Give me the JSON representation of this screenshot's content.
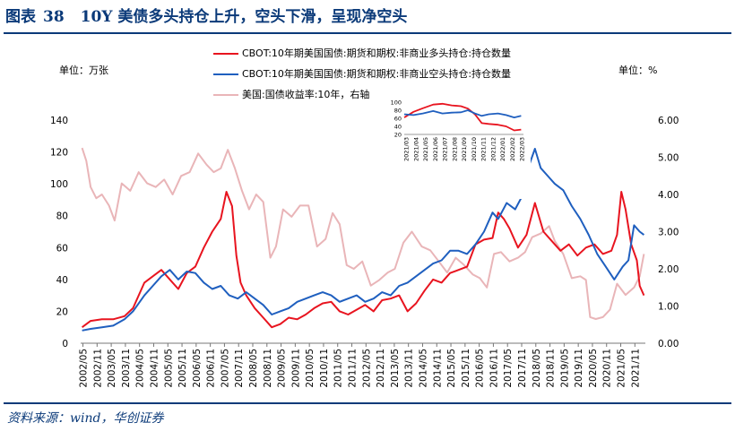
{
  "header": {
    "figure_label": "图表",
    "figure_number": "38",
    "title": "10Y 美债多头持仓上升，空头下滑，呈现净空头"
  },
  "source": "资料来源：wind，华创证券",
  "units": {
    "left": "单位：万张",
    "right": "单位：%"
  },
  "colors": {
    "long": "#e8141f",
    "short": "#1f5fbf",
    "yield": "#e9b5b8",
    "brand": "#0b3a79"
  },
  "chart_data": [
    {
      "type": "line",
      "title": "",
      "legend": [
        "CBOT:10年期美国国债:期货和期权:非商业多头持仓:持仓数量",
        "CBOT:10年期美国国债:期货和期权:非商业空头持仓:持仓数量",
        "美国:国债收益率:10年，右轴"
      ],
      "legend_position": "top-center",
      "x_ticks": [
        "2002/05",
        "2002/11",
        "2003/05",
        "2003/11",
        "2004/05",
        "2004/11",
        "2005/05",
        "2005/11",
        "2006/05",
        "2006/11",
        "2007/05",
        "2007/11",
        "2008/05",
        "2008/11",
        "2009/05",
        "2009/11",
        "2010/05",
        "2010/11",
        "2011/05",
        "2011/11",
        "2012/05",
        "2012/11",
        "2013/05",
        "2013/11",
        "2014/05",
        "2014/11",
        "2015/05",
        "2015/11",
        "2016/05",
        "2016/11",
        "2017/05",
        "2017/11",
        "2018/05",
        "2018/11",
        "2019/05",
        "2019/11",
        "2020/05",
        "2020/11",
        "2021/05",
        "2021/11"
      ],
      "x_range": [
        2002.25,
        2022.2
      ],
      "ylim_left": [
        0,
        140
      ],
      "yticks_left": [
        "0",
        "20",
        "40",
        "60",
        "80",
        "100",
        "120",
        "140"
      ],
      "ylim_right": [
        0,
        6
      ],
      "yticks_right": [
        "0.00",
        "1.00",
        "2.00",
        "3.00",
        "4.00",
        "5.00",
        "6.00"
      ],
      "series": [
        {
          "name": "非商业多头持仓",
          "axis": "left",
          "color": "#e8141f",
          "x": [
            2002.3,
            2002.6,
            2003.0,
            2003.4,
            2003.8,
            2004.1,
            2004.5,
            2004.8,
            2005.1,
            2005.4,
            2005.7,
            2006.0,
            2006.3,
            2006.6,
            2006.9,
            2007.2,
            2007.4,
            2007.6,
            2007.75,
            2007.9,
            2008.1,
            2008.4,
            2008.7,
            2009.0,
            2009.3,
            2009.6,
            2009.9,
            2010.2,
            2010.5,
            2010.8,
            2011.1,
            2011.4,
            2011.7,
            2012.0,
            2012.3,
            2012.6,
            2012.9,
            2013.2,
            2013.5,
            2013.8,
            2014.1,
            2014.4,
            2014.7,
            2015.0,
            2015.3,
            2015.6,
            2015.9,
            2016.2,
            2016.5,
            2016.8,
            2017.0,
            2017.2,
            2017.4,
            2017.7,
            2018.0,
            2018.3,
            2018.6,
            2018.9,
            2019.2,
            2019.5,
            2019.8,
            2020.1,
            2020.4,
            2020.7,
            2021.0,
            2021.2,
            2021.35,
            2021.5,
            2021.7,
            2021.9,
            2022.0,
            2022.15
          ],
          "values": [
            10,
            14,
            15,
            15,
            17,
            22,
            38,
            42,
            46,
            40,
            34,
            44,
            48,
            60,
            70,
            78,
            95,
            86,
            55,
            38,
            30,
            22,
            16,
            10,
            12,
            16,
            15,
            18,
            22,
            25,
            26,
            20,
            18,
            21,
            24,
            20,
            27,
            28,
            30,
            20,
            25,
            33,
            40,
            38,
            44,
            46,
            48,
            62,
            65,
            66,
            82,
            78,
            72,
            60,
            68,
            88,
            70,
            64,
            58,
            62,
            55,
            60,
            62,
            56,
            58,
            68,
            95,
            84,
            62,
            52,
            36,
            30
          ]
        },
        {
          "name": "非商业空头持仓",
          "axis": "left",
          "color": "#1f5fbf",
          "x": [
            2002.3,
            2002.6,
            2003.0,
            2003.4,
            2003.8,
            2004.1,
            2004.5,
            2004.8,
            2005.1,
            2005.4,
            2005.7,
            2006.0,
            2006.3,
            2006.6,
            2006.9,
            2007.2,
            2007.5,
            2007.8,
            2008.1,
            2008.4,
            2008.7,
            2009.0,
            2009.3,
            2009.6,
            2009.9,
            2010.2,
            2010.5,
            2010.8,
            2011.1,
            2011.4,
            2011.7,
            2012.0,
            2012.3,
            2012.6,
            2012.9,
            2013.2,
            2013.5,
            2013.8,
            2014.1,
            2014.4,
            2014.7,
            2015.0,
            2015.3,
            2015.6,
            2015.9,
            2016.2,
            2016.5,
            2016.8,
            2017.0,
            2017.3,
            2017.6,
            2017.9,
            2018.1,
            2018.3,
            2018.5,
            2018.8,
            2019.0,
            2019.3,
            2019.6,
            2019.9,
            2020.2,
            2020.5,
            2020.8,
            2021.1,
            2021.4,
            2021.6,
            2021.8,
            2022.0,
            2022.15
          ],
          "values": [
            8,
            9,
            10,
            11,
            15,
            20,
            30,
            36,
            42,
            46,
            40,
            45,
            44,
            38,
            34,
            36,
            30,
            28,
            32,
            28,
            24,
            18,
            20,
            22,
            26,
            28,
            30,
            32,
            30,
            26,
            28,
            30,
            26,
            28,
            32,
            30,
            36,
            38,
            42,
            46,
            50,
            52,
            58,
            58,
            56,
            62,
            70,
            82,
            78,
            88,
            84,
            94,
            112,
            122,
            110,
            104,
            100,
            96,
            86,
            78,
            68,
            56,
            48,
            40,
            48,
            52,
            74,
            70,
            68
          ]
        },
        {
          "name": "美国:国债收益率:10年",
          "axis": "right",
          "color": "#e9b5b8",
          "x": [
            2002.3,
            2002.45,
            2002.6,
            2002.8,
            2003.0,
            2003.25,
            2003.45,
            2003.7,
            2004.0,
            2004.3,
            2004.6,
            2004.9,
            2005.2,
            2005.5,
            2005.8,
            2006.1,
            2006.4,
            2006.7,
            2006.95,
            2007.2,
            2007.45,
            2007.7,
            2007.95,
            2008.2,
            2008.45,
            2008.7,
            2008.95,
            2009.15,
            2009.4,
            2009.7,
            2010.0,
            2010.3,
            2010.6,
            2010.9,
            2011.15,
            2011.4,
            2011.65,
            2011.9,
            2012.2,
            2012.5,
            2012.8,
            2013.1,
            2013.35,
            2013.65,
            2013.95,
            2014.3,
            2014.6,
            2014.9,
            2015.2,
            2015.5,
            2015.8,
            2016.1,
            2016.35,
            2016.6,
            2016.85,
            2017.1,
            2017.4,
            2017.7,
            2017.95,
            2018.2,
            2018.5,
            2018.8,
            2019.0,
            2019.3,
            2019.6,
            2019.9,
            2020.1,
            2020.25,
            2020.45,
            2020.7,
            2020.95,
            2021.2,
            2021.5,
            2021.8,
            2022.0,
            2022.15
          ],
          "values": [
            5.25,
            4.9,
            4.2,
            3.9,
            4.0,
            3.7,
            3.3,
            4.3,
            4.1,
            4.6,
            4.3,
            4.2,
            4.4,
            4.0,
            4.5,
            4.6,
            5.1,
            4.8,
            4.6,
            4.7,
            5.2,
            4.7,
            4.1,
            3.6,
            4.0,
            3.8,
            2.3,
            2.6,
            3.6,
            3.4,
            3.7,
            3.7,
            2.6,
            2.8,
            3.5,
            3.2,
            2.1,
            2.0,
            2.2,
            1.55,
            1.7,
            1.9,
            2.0,
            2.7,
            3.0,
            2.6,
            2.5,
            2.2,
            1.9,
            2.3,
            2.1,
            1.85,
            1.75,
            1.5,
            2.4,
            2.45,
            2.2,
            2.3,
            2.45,
            2.85,
            2.95,
            3.15,
            2.75,
            2.4,
            1.75,
            1.8,
            1.7,
            0.7,
            0.65,
            0.7,
            0.9,
            1.6,
            1.3,
            1.5,
            1.8,
            2.4
          ]
        }
      ]
    },
    {
      "type": "line",
      "title": "",
      "inset": true,
      "ylim": [
        20,
        100
      ],
      "yticks": [
        "20",
        "40",
        "60",
        "80",
        "100"
      ],
      "x_ticks": [
        "2021/03",
        "2021/04",
        "2021/05",
        "2021/06",
        "2021/07",
        "2021/08",
        "2021/09",
        "2021/10",
        "2021/11",
        "2021/12",
        "2022/01",
        "2022/02",
        "2022/03"
      ],
      "x_range": [
        2021.17,
        2022.2
      ],
      "series": [
        {
          "name": "非商业多头持仓",
          "color": "#e8141f",
          "x": [
            2021.17,
            2021.25,
            2021.33,
            2021.42,
            2021.5,
            2021.58,
            2021.66,
            2021.72,
            2021.78,
            2021.84,
            2021.9,
            2021.98,
            2022.05,
            2022.12,
            2022.18
          ],
          "values": [
            62,
            76,
            85,
            94,
            96,
            92,
            90,
            84,
            70,
            48,
            46,
            44,
            40,
            30,
            32
          ]
        },
        {
          "name": "非商业空头持仓",
          "color": "#1f5fbf",
          "x": [
            2021.17,
            2021.25,
            2021.33,
            2021.42,
            2021.5,
            2021.58,
            2021.66,
            2021.72,
            2021.78,
            2021.84,
            2021.9,
            2021.98,
            2022.05,
            2022.12,
            2022.18
          ],
          "values": [
            70,
            68,
            72,
            78,
            72,
            74,
            75,
            80,
            72,
            66,
            70,
            72,
            68,
            62,
            66
          ]
        }
      ]
    }
  ]
}
